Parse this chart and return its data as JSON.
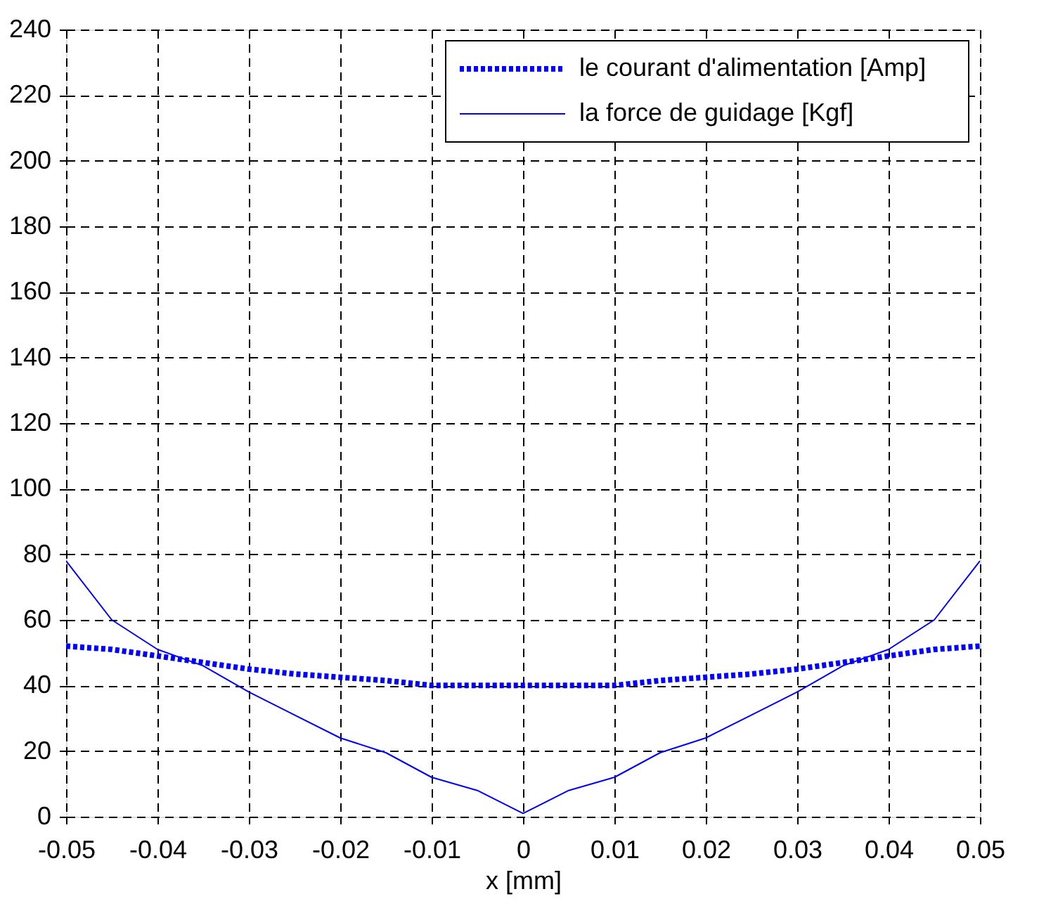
{
  "chart_data": {
    "type": "line",
    "xlabel": "x [mm]",
    "x": [
      -0.05,
      -0.045,
      -0.04,
      -0.035,
      -0.03,
      -0.025,
      -0.02,
      -0.015,
      -0.01,
      -0.005,
      0,
      0.005,
      0.01,
      0.015,
      0.02,
      0.025,
      0.03,
      0.035,
      0.04,
      0.045,
      0.05
    ],
    "series": [
      {
        "name": "le courant d'alimentation [Amp]",
        "color": "#0000ff",
        "line_style": "dotted",
        "values": [
          52,
          51,
          49,
          47,
          45,
          43.5,
          42.5,
          41.5,
          40,
          40,
          40,
          40,
          40,
          41.5,
          42.5,
          43.5,
          45,
          47,
          49,
          51,
          52
        ]
      },
      {
        "name": "la force de guidage [Kgf]",
        "color": "#0000ff",
        "line_style": "solid",
        "values": [
          78,
          60,
          51,
          46,
          38,
          31,
          24,
          19.5,
          12,
          8,
          1,
          8,
          12,
          19.5,
          24,
          31,
          38,
          46,
          51,
          60,
          78
        ]
      }
    ],
    "xlim": [
      -0.05,
      0.05
    ],
    "xticks": [
      -0.05,
      -0.04,
      -0.03,
      -0.02,
      -0.01,
      0,
      0.01,
      0.02,
      0.03,
      0.04,
      0.05
    ],
    "ylim": [
      0,
      240
    ],
    "yticks": [
      0,
      20,
      40,
      60,
      80,
      100,
      120,
      140,
      160,
      180,
      200,
      220,
      240
    ],
    "grid": true,
    "legend": "top right",
    "marker": "none"
  }
}
